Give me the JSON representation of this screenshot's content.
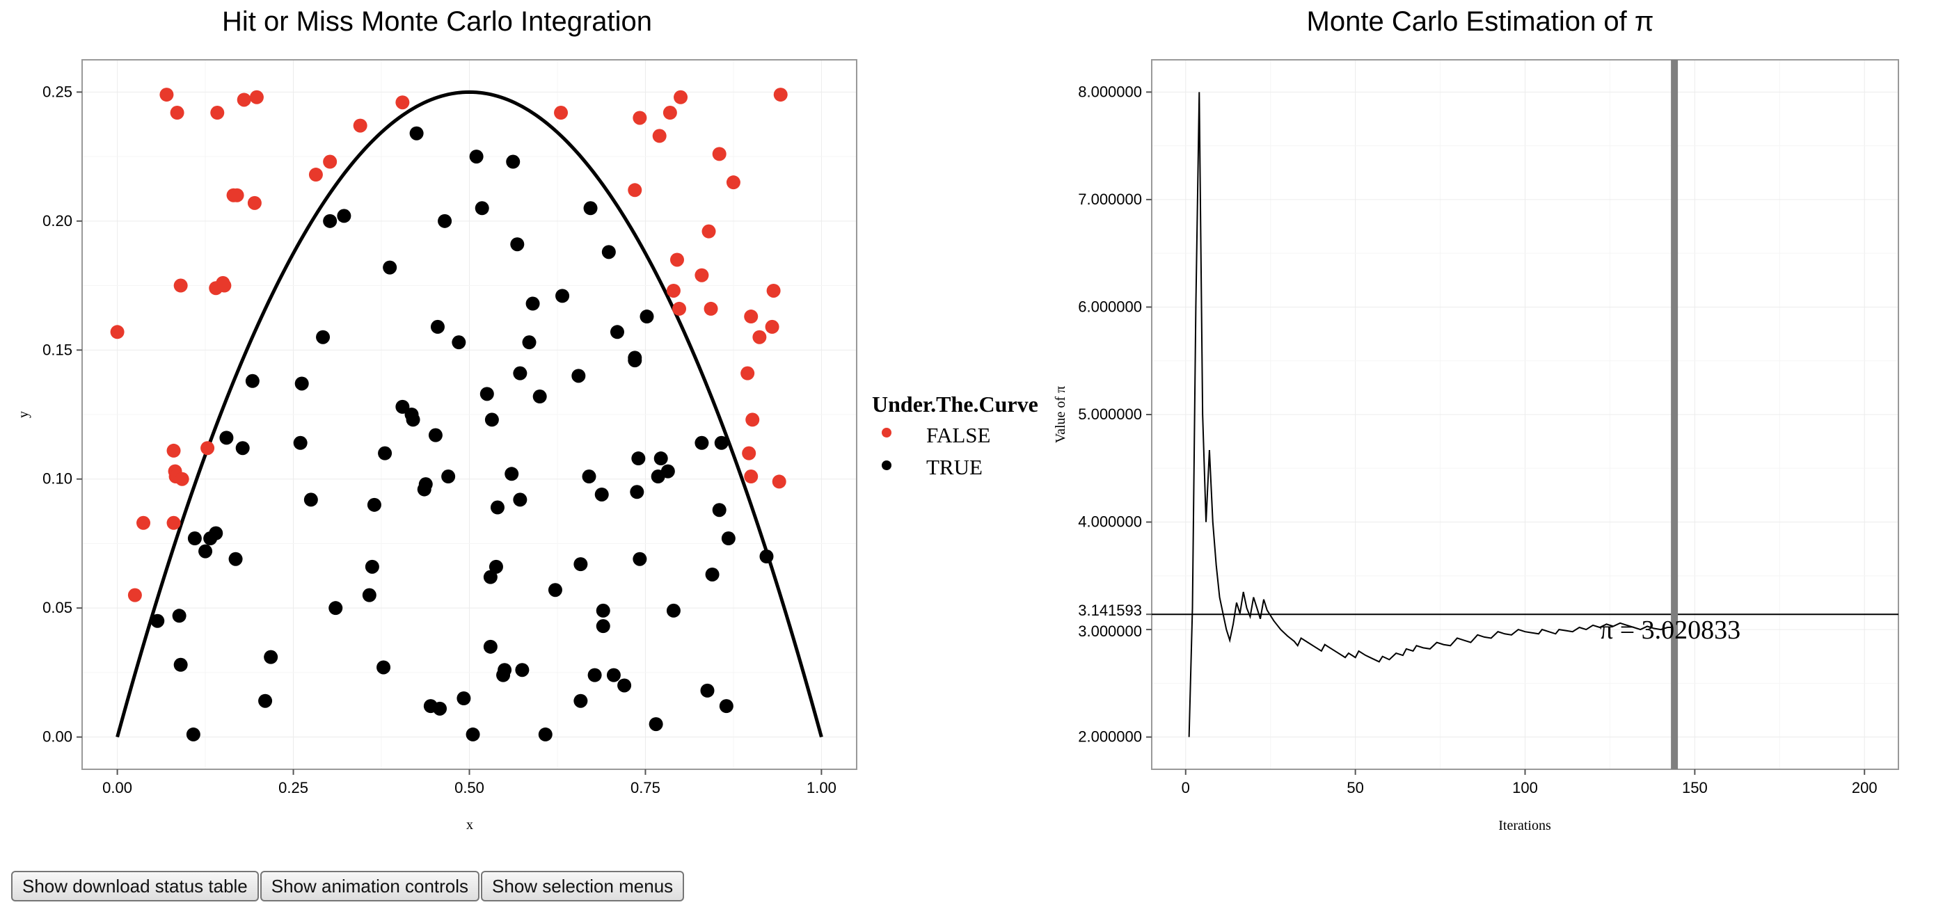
{
  "left_chart": {
    "title": "Hit or Miss Monte Carlo Integration",
    "xlabel": "x",
    "ylabel": "y",
    "xlim": [
      -0.05,
      1.05
    ],
    "ylim": [
      -0.0125,
      0.2625
    ],
    "xticks": [
      0,
      0.25,
      0.5,
      0.75,
      1
    ],
    "xtick_labels": [
      "0.00",
      "0.25",
      "0.50",
      "0.75",
      "1.00"
    ],
    "yticks": [
      0,
      0.05,
      0.1,
      0.15,
      0.2,
      0.25
    ],
    "ytick_labels": [
      "0.00",
      "0.05",
      "0.10",
      "0.15",
      "0.20",
      "0.25"
    ]
  },
  "legend": {
    "title": "Under.The.Curve",
    "items": [
      {
        "label": "FALSE",
        "color": "#e8392b"
      },
      {
        "label": "TRUE",
        "color": "#000000"
      }
    ]
  },
  "right_chart": {
    "title": "Monte Carlo Estimation of π",
    "xlabel": "Iterations",
    "ylabel": "Value of π",
    "xlim": [
      -10,
      210
    ],
    "ylim": [
      1.7,
      8.3
    ],
    "xticks": [
      0,
      50,
      100,
      150,
      200
    ],
    "xtick_labels": [
      "0",
      "50",
      "100",
      "150",
      "200"
    ],
    "yticks": [
      2,
      3,
      3.141593,
      4,
      5,
      6,
      7,
      8
    ],
    "ytick_labels": [
      "2.000000",
      "3.000000",
      "3.141593",
      "4.000000",
      "5.000000",
      "6.000000",
      "7.000000",
      "8.000000"
    ],
    "reference_line": 3.141593,
    "current_iteration": 144,
    "annotation": "π = 3.020833",
    "cursor_color": "#7f7f7f"
  },
  "chart_data": [
    {
      "type": "scatter",
      "title": "Hit or Miss Monte Carlo Integration",
      "xlabel": "x",
      "ylabel": "y",
      "xlim": [
        -0.05,
        1.05
      ],
      "ylim": [
        -0.0125,
        0.2625
      ],
      "curve": "y = x(1 - x)",
      "series": [
        {
          "name": "FALSE",
          "color": "#e8392b",
          "points": [
            [
              0.0,
              0.157
            ],
            [
              0.025,
              0.055
            ],
            [
              0.037,
              0.083
            ],
            [
              0.07,
              0.249
            ],
            [
              0.08,
              0.083
            ],
            [
              0.08,
              0.111
            ],
            [
              0.082,
              0.103
            ],
            [
              0.083,
              0.101
            ],
            [
              0.085,
              0.242
            ],
            [
              0.09,
              0.175
            ],
            [
              0.092,
              0.1
            ],
            [
              0.128,
              0.112
            ],
            [
              0.14,
              0.174
            ],
            [
              0.142,
              0.242
            ],
            [
              0.15,
              0.176
            ],
            [
              0.152,
              0.175
            ],
            [
              0.165,
              0.21
            ],
            [
              0.17,
              0.21
            ],
            [
              0.18,
              0.247
            ],
            [
              0.195,
              0.207
            ],
            [
              0.198,
              0.248
            ],
            [
              0.282,
              0.218
            ],
            [
              0.302,
              0.223
            ],
            [
              0.345,
              0.237
            ],
            [
              0.405,
              0.246
            ],
            [
              0.63,
              0.242
            ],
            [
              0.735,
              0.212
            ],
            [
              0.742,
              0.24
            ],
            [
              0.77,
              0.233
            ],
            [
              0.785,
              0.242
            ],
            [
              0.79,
              0.173
            ],
            [
              0.795,
              0.185
            ],
            [
              0.798,
              0.166
            ],
            [
              0.8,
              0.248
            ],
            [
              0.83,
              0.179
            ],
            [
              0.84,
              0.196
            ],
            [
              0.843,
              0.166
            ],
            [
              0.855,
              0.226
            ],
            [
              0.875,
              0.215
            ],
            [
              0.895,
              0.141
            ],
            [
              0.897,
              0.11
            ],
            [
              0.9,
              0.101
            ],
            [
              0.9,
              0.163
            ],
            [
              0.902,
              0.123
            ],
            [
              0.912,
              0.155
            ],
            [
              0.93,
              0.159
            ],
            [
              0.932,
              0.173
            ],
            [
              0.94,
              0.099
            ],
            [
              0.942,
              0.249
            ]
          ]
        },
        {
          "name": "TRUE",
          "color": "#000000",
          "points": [
            [
              0.057,
              0.045
            ],
            [
              0.088,
              0.047
            ],
            [
              0.09,
              0.028
            ],
            [
              0.108,
              0.001
            ],
            [
              0.11,
              0.077
            ],
            [
              0.125,
              0.072
            ],
            [
              0.132,
              0.077
            ],
            [
              0.14,
              0.079
            ],
            [
              0.155,
              0.116
            ],
            [
              0.168,
              0.069
            ],
            [
              0.178,
              0.112
            ],
            [
              0.192,
              0.138
            ],
            [
              0.21,
              0.014
            ],
            [
              0.218,
              0.031
            ],
            [
              0.26,
              0.114
            ],
            [
              0.262,
              0.137
            ],
            [
              0.275,
              0.092
            ],
            [
              0.292,
              0.155
            ],
            [
              0.302,
              0.2
            ],
            [
              0.31,
              0.05
            ],
            [
              0.322,
              0.202
            ],
            [
              0.358,
              0.055
            ],
            [
              0.362,
              0.066
            ],
            [
              0.365,
              0.09
            ],
            [
              0.378,
              0.027
            ],
            [
              0.38,
              0.11
            ],
            [
              0.387,
              0.182
            ],
            [
              0.405,
              0.128
            ],
            [
              0.418,
              0.125
            ],
            [
              0.42,
              0.123
            ],
            [
              0.425,
              0.234
            ],
            [
              0.436,
              0.096
            ],
            [
              0.438,
              0.098
            ],
            [
              0.445,
              0.012
            ],
            [
              0.452,
              0.117
            ],
            [
              0.455,
              0.159
            ],
            [
              0.458,
              0.011
            ],
            [
              0.465,
              0.2
            ],
            [
              0.47,
              0.101
            ],
            [
              0.485,
              0.153
            ],
            [
              0.492,
              0.015
            ],
            [
              0.505,
              0.001
            ],
            [
              0.51,
              0.225
            ],
            [
              0.518,
              0.205
            ],
            [
              0.525,
              0.133
            ],
            [
              0.53,
              0.062
            ],
            [
              0.53,
              0.035
            ],
            [
              0.532,
              0.123
            ],
            [
              0.538,
              0.066
            ],
            [
              0.54,
              0.089
            ],
            [
              0.548,
              0.024
            ],
            [
              0.55,
              0.026
            ],
            [
              0.56,
              0.102
            ],
            [
              0.562,
              0.223
            ],
            [
              0.568,
              0.191
            ],
            [
              0.572,
              0.141
            ],
            [
              0.572,
              0.092
            ],
            [
              0.575,
              0.026
            ],
            [
              0.585,
              0.153
            ],
            [
              0.59,
              0.168
            ],
            [
              0.6,
              0.132
            ],
            [
              0.608,
              0.001
            ],
            [
              0.622,
              0.057
            ],
            [
              0.632,
              0.171
            ],
            [
              0.655,
              0.14
            ],
            [
              0.658,
              0.067
            ],
            [
              0.658,
              0.014
            ],
            [
              0.67,
              0.101
            ],
            [
              0.672,
              0.205
            ],
            [
              0.678,
              0.024
            ],
            [
              0.688,
              0.094
            ],
            [
              0.69,
              0.043
            ],
            [
              0.69,
              0.049
            ],
            [
              0.698,
              0.188
            ],
            [
              0.705,
              0.024
            ],
            [
              0.71,
              0.157
            ],
            [
              0.72,
              0.02
            ],
            [
              0.735,
              0.146
            ],
            [
              0.735,
              0.147
            ],
            [
              0.738,
              0.095
            ],
            [
              0.74,
              0.108
            ],
            [
              0.742,
              0.069
            ],
            [
              0.752,
              0.163
            ],
            [
              0.765,
              0.005
            ],
            [
              0.768,
              0.101
            ],
            [
              0.772,
              0.108
            ],
            [
              0.782,
              0.103
            ],
            [
              0.79,
              0.049
            ],
            [
              0.83,
              0.114
            ],
            [
              0.838,
              0.018
            ],
            [
              0.845,
              0.063
            ],
            [
              0.855,
              0.088
            ],
            [
              0.858,
              0.114
            ],
            [
              0.865,
              0.012
            ],
            [
              0.868,
              0.077
            ],
            [
              0.922,
              0.07
            ]
          ]
        }
      ]
    },
    {
      "type": "line",
      "title": "Monte Carlo Estimation of π",
      "xlabel": "Iterations",
      "ylabel": "Value of π",
      "xlim": [
        -10,
        210
      ],
      "ylim": [
        1.7,
        8.3
      ],
      "series": [
        {
          "points": [
            [
              1,
              2.0
            ],
            [
              2,
              3.2
            ],
            [
              3,
              6.0
            ],
            [
              4,
              8.0
            ],
            [
              5,
              5.0
            ],
            [
              6,
              4.0
            ],
            [
              7,
              4.67
            ],
            [
              8,
              4.0
            ],
            [
              9,
              3.6
            ],
            [
              10,
              3.3
            ],
            [
              11,
              3.15
            ],
            [
              12,
              3.0
            ],
            [
              13,
              2.9
            ],
            [
              14,
              3.05
            ],
            [
              15,
              3.25
            ],
            [
              16,
              3.15
            ],
            [
              17,
              3.35
            ],
            [
              18,
              3.2
            ],
            [
              19,
              3.12
            ],
            [
              20,
              3.3
            ],
            [
              21,
              3.2
            ],
            [
              22,
              3.1
            ],
            [
              23,
              3.28
            ],
            [
              24,
              3.18
            ],
            [
              26,
              3.08
            ],
            [
              28,
              3.0
            ],
            [
              30,
              2.94
            ],
            [
              32,
              2.89
            ],
            [
              33,
              2.85
            ],
            [
              34,
              2.92
            ],
            [
              36,
              2.88
            ],
            [
              38,
              2.84
            ],
            [
              40,
              2.8
            ],
            [
              41,
              2.86
            ],
            [
              43,
              2.82
            ],
            [
              45,
              2.78
            ],
            [
              47,
              2.74
            ],
            [
              48,
              2.78
            ],
            [
              50,
              2.74
            ],
            [
              51,
              2.8
            ],
            [
              53,
              2.76
            ],
            [
              55,
              2.73
            ],
            [
              57,
              2.7
            ],
            [
              58,
              2.75
            ],
            [
              60,
              2.72
            ],
            [
              62,
              2.78
            ],
            [
              64,
              2.76
            ],
            [
              65,
              2.82
            ],
            [
              67,
              2.8
            ],
            [
              68,
              2.85
            ],
            [
              70,
              2.83
            ],
            [
              72,
              2.82
            ],
            [
              74,
              2.88
            ],
            [
              76,
              2.86
            ],
            [
              78,
              2.85
            ],
            [
              80,
              2.92
            ],
            [
              82,
              2.9
            ],
            [
              84,
              2.88
            ],
            [
              86,
              2.95
            ],
            [
              88,
              2.93
            ],
            [
              90,
              2.92
            ],
            [
              92,
              2.98
            ],
            [
              94,
              2.96
            ],
            [
              96,
              2.95
            ],
            [
              98,
              3.0
            ],
            [
              100,
              2.98
            ],
            [
              102,
              2.97
            ],
            [
              104,
              2.96
            ],
            [
              105,
              3.0
            ],
            [
              107,
              2.98
            ],
            [
              109,
              2.96
            ],
            [
              110,
              3.0
            ],
            [
              112,
              2.99
            ],
            [
              114,
              2.98
            ],
            [
              116,
              3.02
            ],
            [
              118,
              3.0
            ],
            [
              120,
              3.04
            ],
            [
              122,
              3.02
            ],
            [
              124,
              3.05
            ],
            [
              126,
              3.03
            ],
            [
              128,
              3.06
            ],
            [
              130,
              3.04
            ],
            [
              132,
              3.02
            ],
            [
              134,
              3.0
            ],
            [
              136,
              3.03
            ],
            [
              138,
              3.01
            ],
            [
              140,
              3.0
            ],
            [
              142,
              3.02
            ],
            [
              144,
              3.020833
            ]
          ]
        }
      ]
    }
  ],
  "controls": [
    {
      "label": "Show download status table"
    },
    {
      "label": "Show animation controls"
    },
    {
      "label": "Show selection menus"
    }
  ]
}
